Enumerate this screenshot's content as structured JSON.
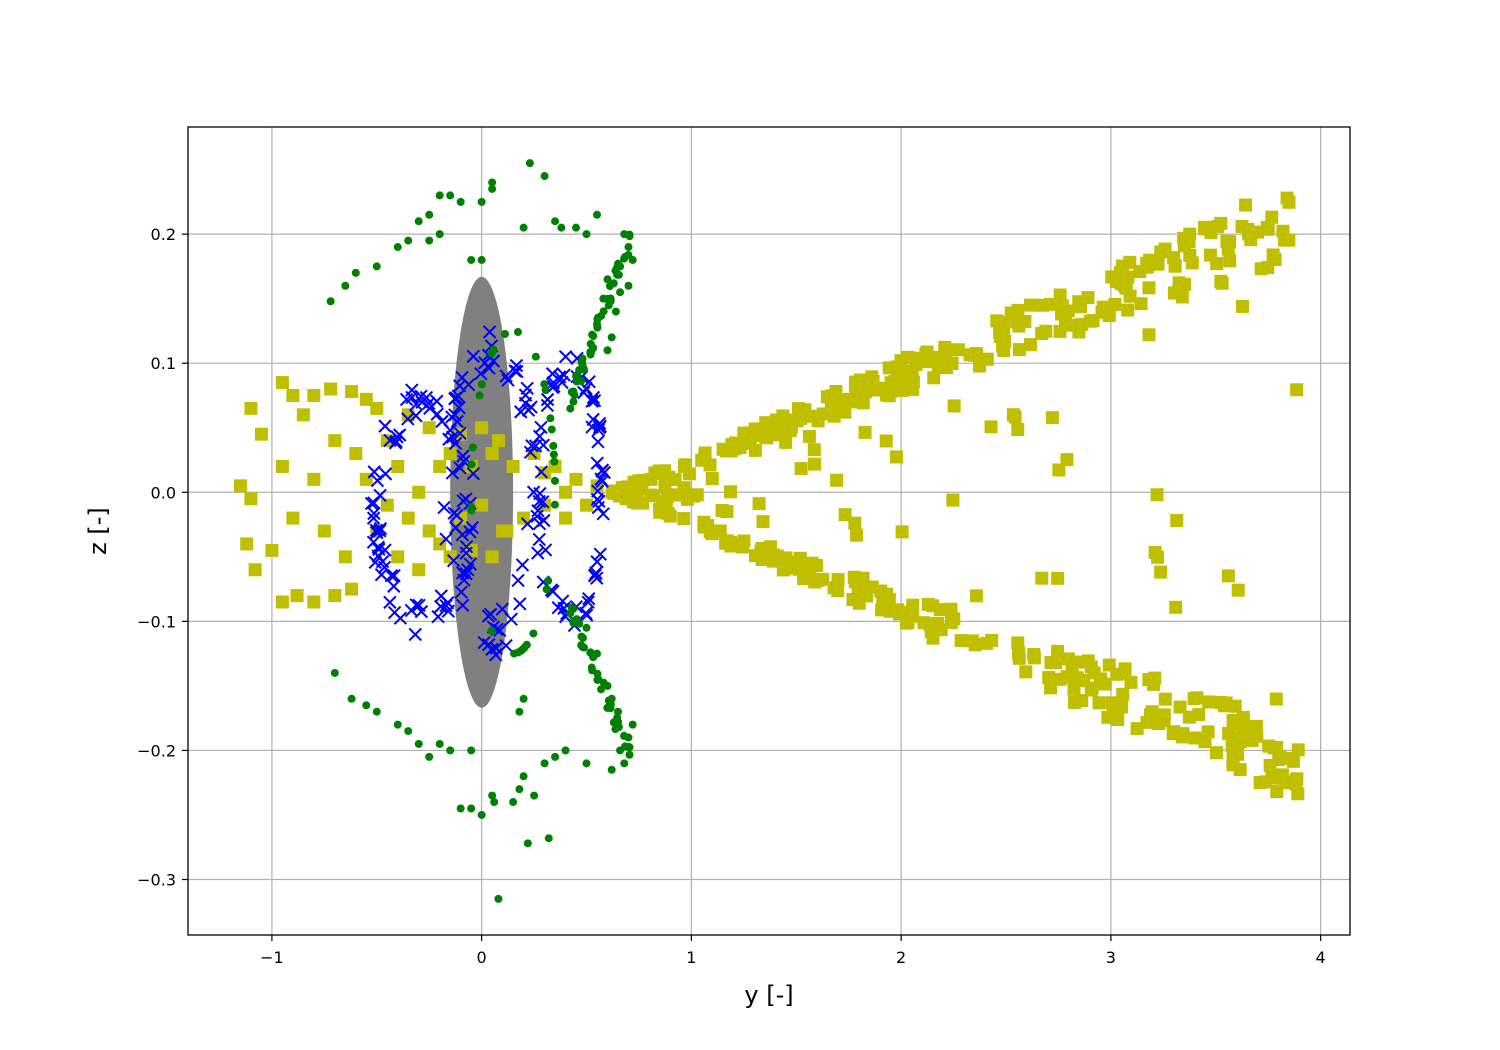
{
  "chart_data": {
    "type": "scatter",
    "title": "",
    "xlabel": "y [-]",
    "ylabel": "z [-]",
    "xlim": [
      -1.4,
      4.14
    ],
    "ylim": [
      -0.343,
      0.283
    ],
    "xticks": [
      -1,
      0,
      1,
      2,
      3,
      4
    ],
    "xtick_labels": [
      "−1",
      "0",
      "1",
      "2",
      "3",
      "4"
    ],
    "yticks": [
      -0.3,
      -0.2,
      -0.1,
      0.0,
      0.1,
      0.2
    ],
    "ytick_labels": [
      "−0.3",
      "−0.2",
      "−0.1",
      "0.0",
      "0.1",
      "0.2"
    ],
    "grid": true,
    "legend": "none",
    "body_ellipse": {
      "cx": 0.0,
      "cy": 0.0,
      "rx": 0.15,
      "ry": 0.167,
      "color": "#808080"
    },
    "series": [
      {
        "marker": "square",
        "color": "#bfbf00",
        "fan": {
          "apex_y": 0.62,
          "y_max": 3.9,
          "z_slope_max": 0.074
        },
        "points": [
          [
            -1.1,
            0.065
          ],
          [
            -1.05,
            0.045
          ],
          [
            -0.95,
            0.085
          ],
          [
            -0.9,
            0.075
          ],
          [
            -0.85,
            0.06
          ],
          [
            -0.8,
            0.075
          ],
          [
            -0.72,
            0.08
          ],
          [
            -0.62,
            0.078
          ],
          [
            -0.55,
            0.072
          ],
          [
            -0.5,
            0.065
          ],
          [
            -1.12,
            -0.04
          ],
          [
            -1.08,
            -0.06
          ],
          [
            -1.0,
            -0.045
          ],
          [
            -0.95,
            -0.085
          ],
          [
            -0.88,
            -0.08
          ],
          [
            -0.8,
            -0.085
          ],
          [
            -0.7,
            -0.08
          ],
          [
            -0.62,
            -0.075
          ],
          [
            -1.15,
            0.005
          ],
          [
            -1.1,
            -0.005
          ],
          [
            -0.95,
            0.02
          ],
          [
            -0.9,
            -0.02
          ],
          [
            -0.8,
            0.01
          ],
          [
            -0.75,
            -0.03
          ],
          [
            -0.7,
            0.04
          ],
          [
            -0.65,
            -0.05
          ],
          [
            -0.6,
            0.03
          ],
          [
            -0.55,
            0.01
          ],
          [
            -0.5,
            -0.03
          ],
          [
            -0.45,
            0.04
          ],
          [
            -0.4,
            -0.05
          ],
          [
            -0.35,
            0.06
          ],
          [
            -0.3,
            -0.06
          ],
          [
            -0.25,
            0.05
          ],
          [
            -0.2,
            -0.04
          ],
          [
            -0.15,
            0.03
          ],
          [
            -0.1,
            -0.02
          ],
          [
            -0.05,
            0.02
          ],
          [
            0.0,
            -0.01
          ],
          [
            0.05,
            0.03
          ],
          [
            0.1,
            -0.03
          ],
          [
            0.15,
            0.02
          ],
          [
            0.2,
            -0.02
          ],
          [
            0.25,
            0.03
          ],
          [
            0.3,
            -0.01
          ],
          [
            0.35,
            0.02
          ],
          [
            0.4,
            -0.02
          ],
          [
            0.45,
            0.01
          ],
          [
            0.5,
            -0.01
          ],
          [
            0.55,
            0.005
          ],
          [
            -0.3,
            0.0
          ],
          [
            -0.2,
            0.02
          ],
          [
            -0.1,
            0.045
          ],
          [
            0.0,
            0.05
          ],
          [
            0.08,
            0.04
          ],
          [
            -0.25,
            -0.03
          ],
          [
            -0.15,
            -0.05
          ],
          [
            -0.05,
            -0.045
          ],
          [
            0.05,
            -0.05
          ],
          [
            0.12,
            -0.03
          ],
          [
            -0.4,
            0.02
          ],
          [
            -0.35,
            -0.02
          ],
          [
            -0.45,
            -0.01
          ],
          [
            0.3,
            0.015
          ],
          [
            0.4,
            0.0
          ]
        ]
      },
      {
        "marker": "x",
        "color": "#0000ff",
        "rings": [
          {
            "cy": -0.28,
            "cz": -0.015,
            "ry": 0.22,
            "rz": 0.085,
            "n": 80
          },
          {
            "cy": 0.42,
            "cz": 0.0,
            "ry": 0.15,
            "rz": 0.095,
            "n": 70
          },
          {
            "cy": 0.05,
            "cz": 0.0,
            "ry": 0.2,
            "rz": 0.11,
            "n": 60
          }
        ]
      },
      {
        "marker": "dot",
        "color": "#008000",
        "points": [
          [
            0.23,
            0.255
          ],
          [
            0.3,
            0.245
          ],
          [
            0.05,
            0.24
          ],
          [
            0.05,
            0.235
          ],
          [
            -0.15,
            0.23
          ],
          [
            -0.2,
            0.23
          ],
          [
            -0.1,
            0.225
          ],
          [
            0.0,
            0.225
          ],
          [
            -0.25,
            0.215
          ],
          [
            -0.3,
            0.21
          ],
          [
            0.35,
            0.21
          ],
          [
            0.55,
            0.215
          ],
          [
            0.45,
            0.205
          ],
          [
            0.5,
            0.2
          ],
          [
            0.38,
            0.205
          ],
          [
            0.2,
            0.205
          ],
          [
            -0.2,
            0.2
          ],
          [
            -0.25,
            0.195
          ],
          [
            -0.35,
            0.195
          ],
          [
            -0.4,
            0.19
          ],
          [
            -0.5,
            0.175
          ],
          [
            -0.6,
            0.17
          ],
          [
            -0.65,
            0.16
          ],
          [
            -0.72,
            0.148
          ],
          [
            0.0,
            0.18
          ],
          [
            -0.05,
            0.18
          ],
          [
            0.32,
            -0.268
          ],
          [
            0.22,
            -0.272
          ],
          [
            0.06,
            -0.24
          ],
          [
            0.05,
            -0.235
          ],
          [
            -0.1,
            -0.245
          ],
          [
            -0.05,
            -0.245
          ],
          [
            0.0,
            -0.25
          ],
          [
            0.15,
            -0.24
          ],
          [
            0.18,
            -0.23
          ],
          [
            0.25,
            -0.235
          ],
          [
            0.2,
            -0.22
          ],
          [
            0.3,
            -0.21
          ],
          [
            0.35,
            -0.205
          ],
          [
            0.4,
            -0.2
          ],
          [
            -0.25,
            -0.205
          ],
          [
            -0.3,
            -0.195
          ],
          [
            -0.35,
            -0.185
          ],
          [
            -0.4,
            -0.18
          ],
          [
            -0.5,
            -0.17
          ],
          [
            -0.55,
            -0.165
          ],
          [
            -0.62,
            -0.16
          ],
          [
            -0.7,
            -0.14
          ],
          [
            0.08,
            -0.315
          ],
          [
            0.18,
            -0.17
          ],
          [
            0.2,
            -0.16
          ],
          [
            -0.05,
            -0.2
          ],
          [
            -0.15,
            -0.2
          ],
          [
            -0.2,
            -0.195
          ],
          [
            0.5,
            -0.21
          ],
          [
            0.62,
            -0.215
          ],
          [
            0.68,
            -0.21
          ],
          [
            0.66,
            -0.2
          ],
          [
            0.7,
            -0.19
          ],
          [
            0.72,
            -0.18
          ],
          [
            0.6,
            -0.15
          ],
          [
            0.62,
            -0.16
          ],
          [
            0.65,
            -0.17
          ],
          [
            0.55,
            -0.125
          ],
          [
            0.5,
            -0.105
          ],
          [
            0.68,
            0.2
          ],
          [
            0.7,
            0.19
          ],
          [
            0.72,
            0.18
          ],
          [
            0.66,
            0.175
          ],
          [
            0.6,
            0.165
          ],
          [
            0.58,
            0.15
          ],
          [
            0.55,
            0.13
          ],
          [
            0.52,
            0.115
          ],
          [
            0.48,
            0.1
          ],
          [
            0.45,
            0.09
          ],
          [
            0.62,
            0.12
          ],
          [
            0.64,
            0.14
          ],
          [
            0.66,
            0.155
          ],
          [
            0.7,
            0.16
          ],
          [
            0.6,
            0.11
          ]
        ]
      }
    ]
  }
}
